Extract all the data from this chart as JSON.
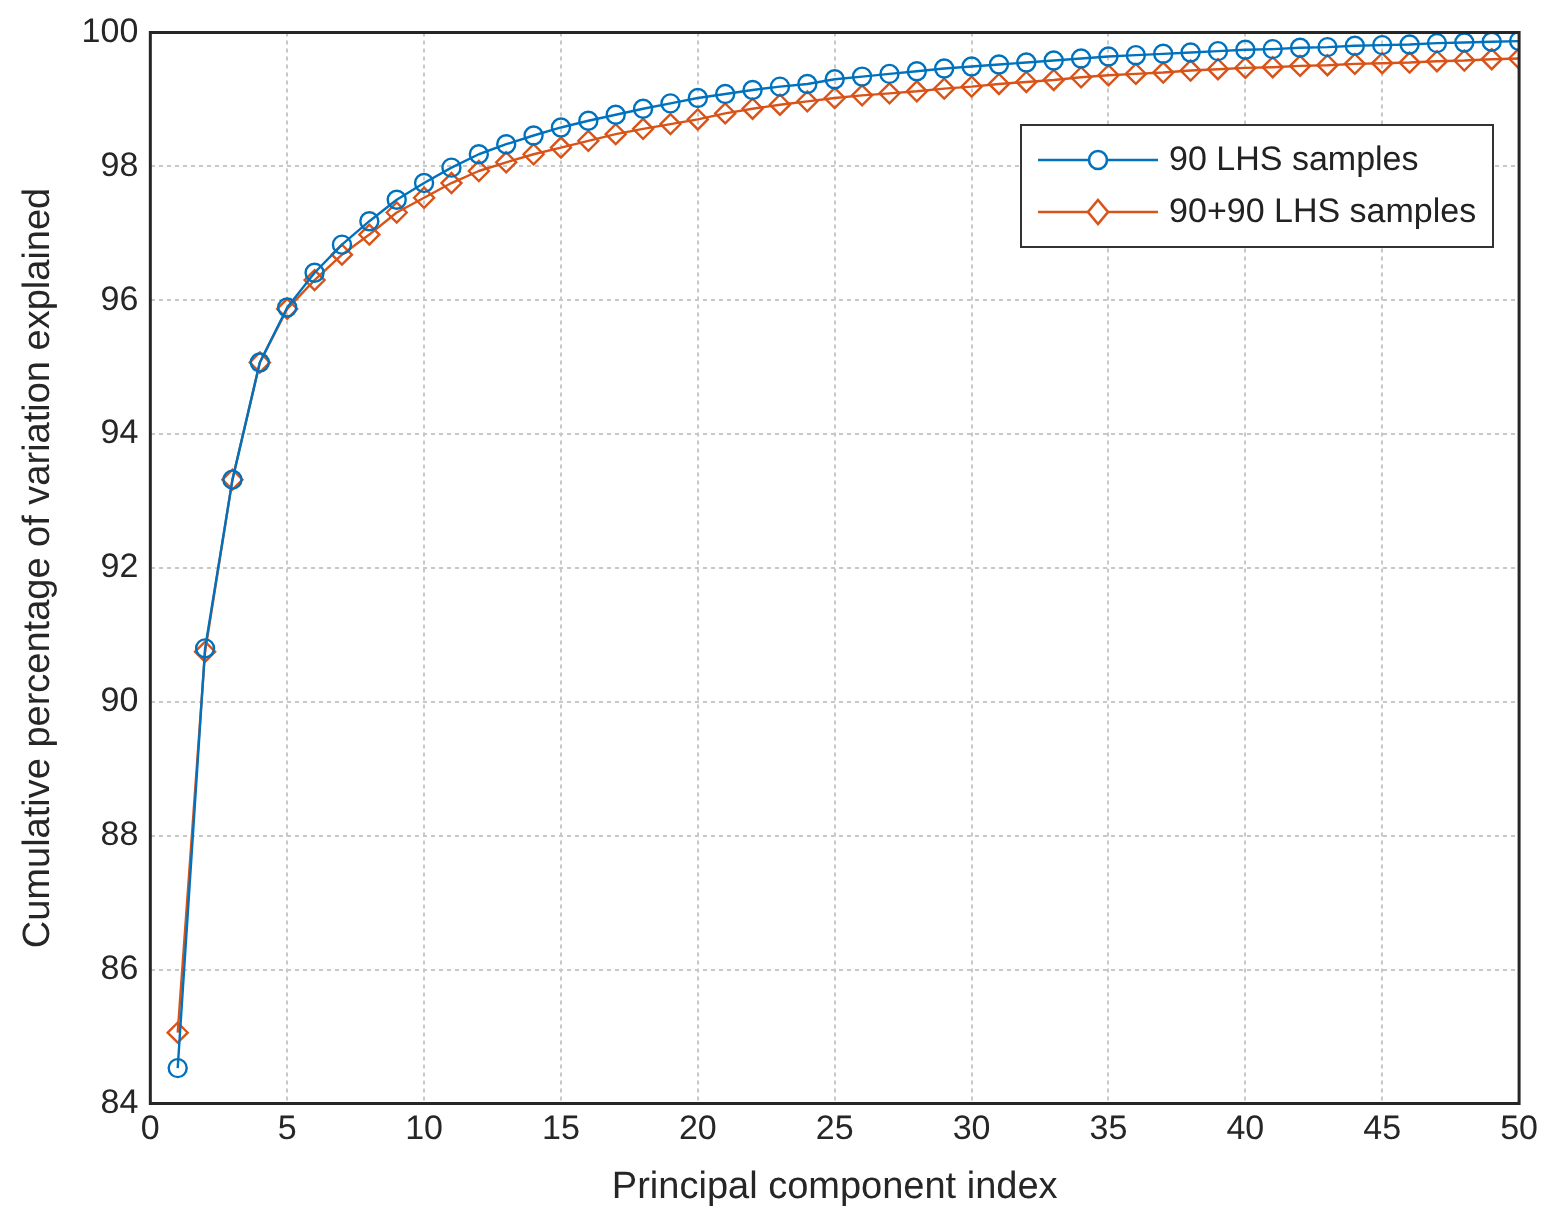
{
  "chart_data": {
    "type": "line",
    "xlabel": "Principal component index",
    "ylabel": "Cumulative percentage of variation explained",
    "x": [
      1,
      2,
      3,
      4,
      5,
      6,
      7,
      8,
      9,
      10,
      11,
      12,
      13,
      14,
      15,
      16,
      17,
      18,
      19,
      20,
      21,
      22,
      23,
      24,
      25,
      26,
      27,
      28,
      29,
      30,
      31,
      32,
      33,
      34,
      35,
      36,
      37,
      38,
      39,
      40,
      41,
      42,
      43,
      44,
      45,
      46,
      47,
      48,
      49,
      50
    ],
    "series": [
      {
        "name": "90 LHS samples",
        "color": "#0072bd",
        "marker": "circle",
        "values": [
          84.53,
          90.8,
          93.32,
          95.07,
          95.89,
          96.41,
          96.83,
          97.18,
          97.5,
          97.75,
          97.98,
          98.18,
          98.33,
          98.46,
          98.58,
          98.68,
          98.77,
          98.86,
          98.94,
          99.02,
          99.08,
          99.14,
          99.19,
          99.23,
          99.3,
          99.34,
          99.38,
          99.42,
          99.46,
          99.49,
          99.52,
          99.55,
          99.58,
          99.61,
          99.64,
          99.66,
          99.68,
          99.7,
          99.72,
          99.74,
          99.75,
          99.77,
          99.78,
          99.8,
          99.81,
          99.82,
          99.84,
          99.85,
          99.86,
          99.87
        ]
      },
      {
        "name": "90+90 LHS samples",
        "color": "#d95319",
        "marker": "diamond",
        "values": [
          85.06,
          90.75,
          93.32,
          95.07,
          95.87,
          96.3,
          96.68,
          96.98,
          97.31,
          97.53,
          97.75,
          97.93,
          98.06,
          98.18,
          98.28,
          98.38,
          98.48,
          98.56,
          98.63,
          98.7,
          98.79,
          98.86,
          98.92,
          98.97,
          99.02,
          99.06,
          99.09,
          99.12,
          99.16,
          99.19,
          99.23,
          99.26,
          99.29,
          99.33,
          99.36,
          99.38,
          99.4,
          99.43,
          99.45,
          99.47,
          99.48,
          99.5,
          99.51,
          99.53,
          99.54,
          99.55,
          99.57,
          99.58,
          99.6,
          99.61
        ]
      }
    ],
    "xlim": [
      0,
      50
    ],
    "xticks": [
      0,
      5,
      10,
      15,
      20,
      25,
      30,
      35,
      40,
      45,
      50
    ],
    "ylim": [
      84,
      100
    ],
    "yticks": [
      84,
      86,
      88,
      90,
      92,
      94,
      96,
      98,
      100
    ],
    "grid": true,
    "legend": "top right",
    "line_style": "solid"
  }
}
